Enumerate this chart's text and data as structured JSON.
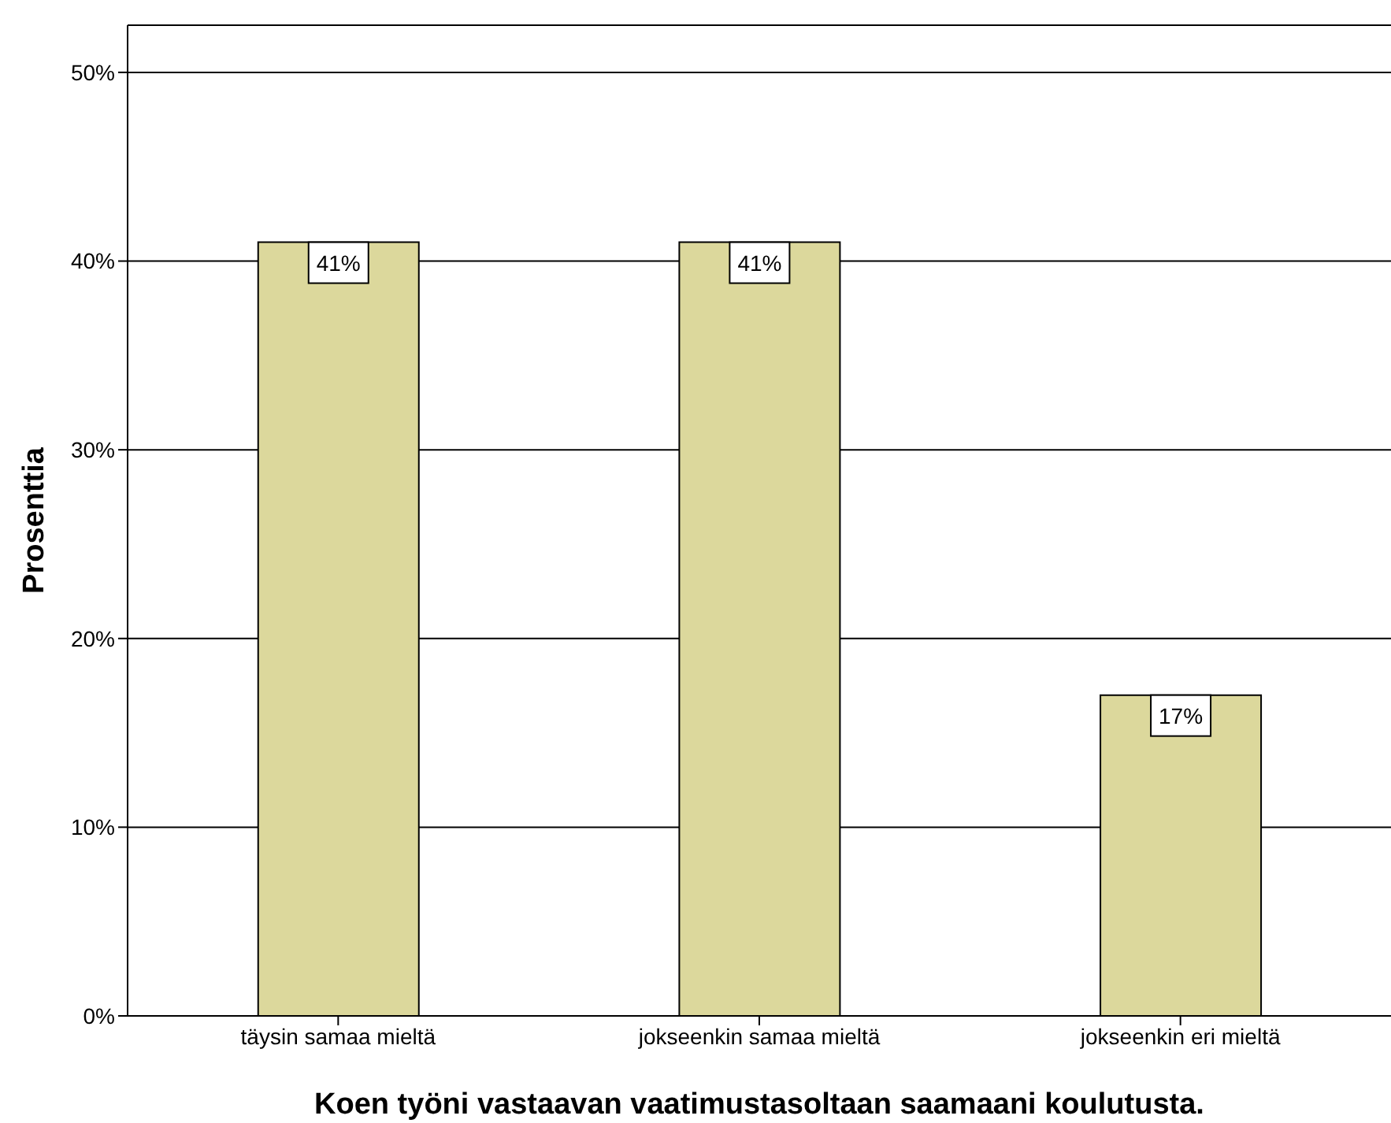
{
  "chart_data": {
    "type": "bar",
    "xlabel": "Koen työni vastaavan vaatimustasoltaan saamaani koulutusta.",
    "ylabel": "Prosenttia",
    "categories": [
      "täysin samaa mieltä",
      "jokseenkin samaa mieltä",
      "jokseenkin eri mieltä"
    ],
    "values": [
      41,
      41,
      17
    ],
    "value_labels": [
      "41%",
      "41%",
      "17%"
    ],
    "color": "#dcd89c",
    "ylim": [
      0,
      52.5
    ],
    "yticks": [
      {
        "value": 0,
        "label": "0%"
      },
      {
        "value": 10,
        "label": "10%"
      },
      {
        "value": 20,
        "label": "20%"
      },
      {
        "value": 30,
        "label": "30%"
      },
      {
        "value": 40,
        "label": "40%"
      },
      {
        "value": 50,
        "label": "50%"
      }
    ],
    "grid": "y",
    "legend": false
  }
}
